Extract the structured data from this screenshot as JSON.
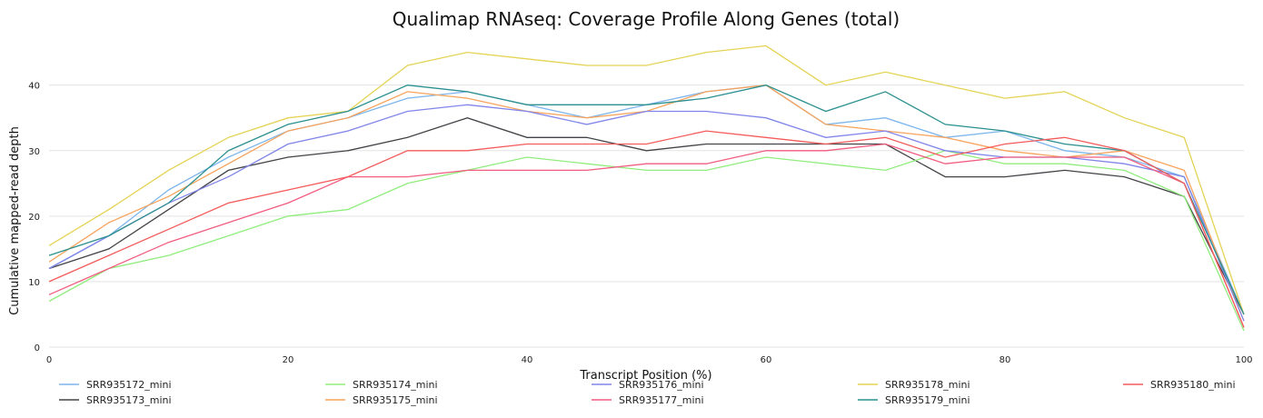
{
  "chart_data": {
    "type": "line",
    "title": "Qualimap RNAseq: Coverage Profile Along Genes (total)",
    "xlabel": "Transcript Position (%)",
    "ylabel": "Cumulative mapped-read depth",
    "xlim": [
      0,
      100
    ],
    "ylim": [
      0,
      48
    ],
    "xticks": [
      0,
      20,
      40,
      60,
      80,
      100
    ],
    "yticks": [
      0,
      10,
      20,
      30,
      40
    ],
    "grid": "horizontal",
    "legend_position": "bottom",
    "x": [
      0,
      5,
      10,
      15,
      20,
      25,
      30,
      35,
      40,
      45,
      50,
      55,
      60,
      65,
      70,
      75,
      80,
      85,
      90,
      95,
      100
    ],
    "series": [
      {
        "name": "SRR935172_mini",
        "color": "#7cb5ec",
        "values": [
          12,
          17,
          24,
          29,
          33,
          35,
          38,
          39,
          37,
          35,
          37,
          39,
          40,
          34,
          35,
          32,
          33,
          30,
          29,
          26,
          5
        ]
      },
      {
        "name": "SRR935173_mini",
        "color": "#434348",
        "values": [
          12,
          15,
          21,
          27,
          29,
          30,
          32,
          35,
          32,
          32,
          30,
          31,
          31,
          31,
          31,
          26,
          26,
          27,
          26,
          23,
          5
        ]
      },
      {
        "name": "SRR935174_mini",
        "color": "#90ed7d",
        "values": [
          7,
          12,
          14,
          17,
          20,
          21,
          25,
          27,
          29,
          28,
          27,
          27,
          29,
          28,
          27,
          30,
          28,
          28,
          27,
          23,
          2.5
        ]
      },
      {
        "name": "SRR935175_mini",
        "color": "#f7a35c",
        "values": [
          13,
          19,
          23,
          28,
          33,
          35,
          39,
          38,
          36,
          35,
          36,
          39,
          40,
          34,
          33,
          32,
          30,
          29,
          30,
          27,
          4
        ]
      },
      {
        "name": "SRR935176_mini",
        "color": "#8085e9",
        "values": [
          12,
          17,
          22,
          26,
          31,
          33,
          36,
          37,
          36,
          34,
          36,
          36,
          35,
          32,
          33,
          30,
          29,
          29,
          28,
          26,
          4
        ]
      },
      {
        "name": "SRR935177_mini",
        "color": "#f15c80",
        "values": [
          8,
          12,
          16,
          19,
          22,
          26,
          26,
          27,
          27,
          27,
          28,
          28,
          30,
          30,
          31,
          28,
          29,
          29,
          29,
          25,
          3
        ]
      },
      {
        "name": "SRR935178_mini",
        "color": "#e4d354",
        "values": [
          15.5,
          21,
          27,
          32,
          35,
          36,
          43,
          45,
          44,
          43,
          43,
          45,
          46,
          40,
          42,
          40,
          38,
          39,
          35,
          32,
          5
        ]
      },
      {
        "name": "SRR935179_mini",
        "color": "#2b908f",
        "values": [
          14,
          17,
          22,
          30,
          34,
          36,
          40,
          39,
          37,
          37,
          37,
          38,
          40,
          36,
          39,
          34,
          33,
          31,
          30,
          25,
          5
        ]
      },
      {
        "name": "SRR935180_mini",
        "color": "#f45b5b",
        "values": [
          10,
          14,
          18,
          22,
          24,
          26,
          30,
          30,
          31,
          31,
          31,
          33,
          32,
          31,
          32,
          29,
          31,
          32,
          30,
          25,
          3
        ]
      }
    ]
  }
}
